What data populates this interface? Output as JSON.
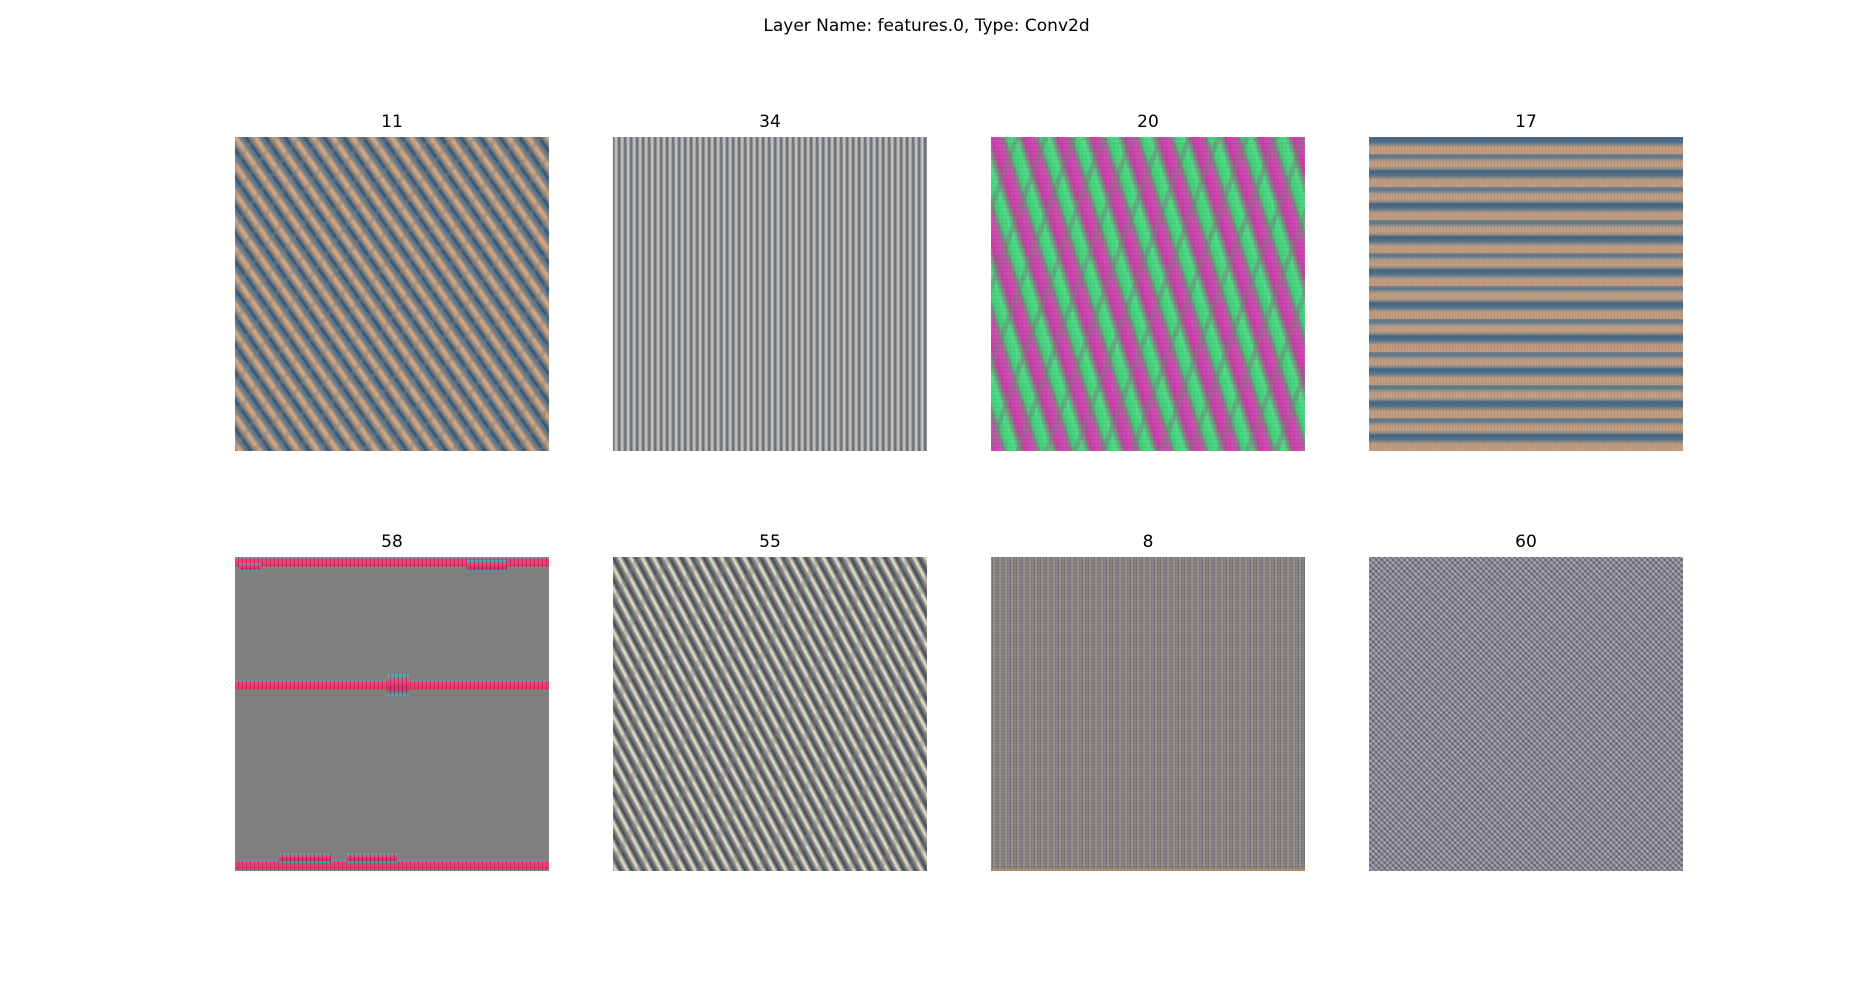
{
  "figure": {
    "title": "Layer Name: features.0, Type: Conv2d"
  },
  "panels": [
    {
      "label": "11",
      "icon": "filter-visualization-image",
      "pattern": "diagonal tan and blue stripes"
    },
    {
      "label": "34",
      "icon": "filter-visualization-image",
      "pattern": "fine vertical gray stripes"
    },
    {
      "label": "20",
      "icon": "filter-visualization-image",
      "pattern": "pink and green worm pattern"
    },
    {
      "label": "17",
      "icon": "filter-visualization-image",
      "pattern": "horizontal tan and blue bands"
    },
    {
      "label": "58",
      "icon": "filter-visualization-image",
      "pattern": "gray with pink horizontal bars"
    },
    {
      "label": "55",
      "icon": "filter-visualization-image",
      "pattern": "diagonal fine gray stripes"
    },
    {
      "label": "8",
      "icon": "filter-visualization-image",
      "pattern": "fine vertical multicolor stripes"
    },
    {
      "label": "60",
      "icon": "filter-visualization-image",
      "pattern": "fine noisy checker"
    }
  ],
  "colors": {
    "background": "#ffffff",
    "neutral_gray": "#7f7f7f",
    "tan": "#c79f80",
    "blue": "#4f7390",
    "pink": "#d64ab6",
    "green": "#4fe08a",
    "bar_pink": "#ff3d7a"
  }
}
